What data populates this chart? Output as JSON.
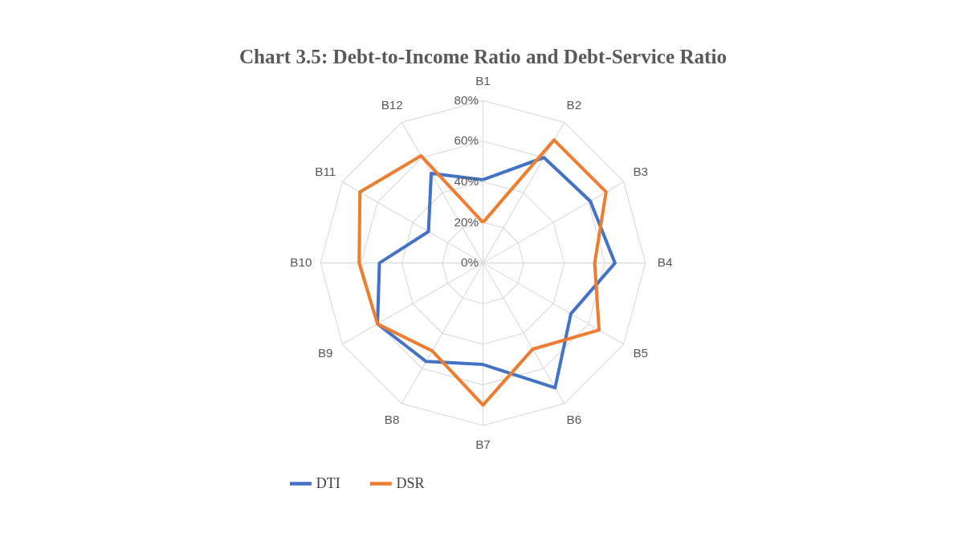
{
  "chart_data": {
    "type": "radar",
    "title": "Chart 3.5: Debt-to-Income Ratio and Debt-Service Ratio",
    "categories": [
      "B1",
      "B2",
      "B3",
      "B4",
      "B5",
      "B6",
      "B7",
      "B8",
      "B9",
      "B10",
      "B11",
      "B12"
    ],
    "series": [
      {
        "name": "DTI",
        "color": "#4472c4",
        "values": [
          41,
          60,
          61,
          65,
          50,
          71,
          50,
          56,
          60,
          51,
          31,
          51
        ]
      },
      {
        "name": "DSR",
        "color": "#ed7d31",
        "values": [
          20,
          70,
          70,
          55,
          66,
          49,
          70,
          50,
          60,
          61,
          70,
          61
        ]
      }
    ],
    "ylim": [
      0,
      80
    ],
    "yticks": [
      {
        "value": 0,
        "label": "0%"
      },
      {
        "value": 20,
        "label": "20%"
      },
      {
        "value": 40,
        "label": "40%"
      },
      {
        "value": 60,
        "label": "60%"
      },
      {
        "value": 80,
        "label": "80%"
      }
    ],
    "grid": true,
    "legend": "bottom"
  }
}
